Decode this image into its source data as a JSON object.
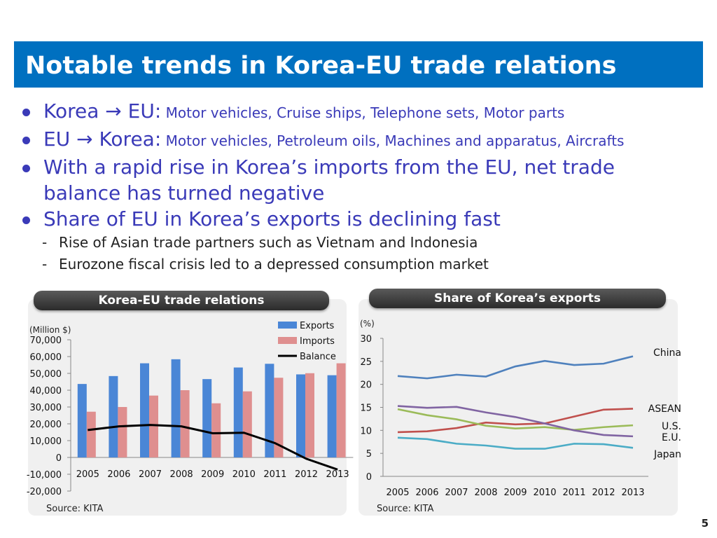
{
  "slide": {
    "title": "Notable trends in Korea-EU trade relations",
    "page_number": "5",
    "colors": {
      "title_bg": "#0070c0",
      "bullet_text": "#3a3ab8"
    }
  },
  "bullets": [
    {
      "main": "Korea → EU:",
      "detail": " Motor vehicles, Cruise ships, Telephone sets, Motor parts"
    },
    {
      "main": "EU → Korea:",
      "detail": " Motor vehicles, Petroleum oils, Machines and apparatus, Aircrafts"
    },
    {
      "line1": "With a rapid rise in Korea’s imports from the EU, net trade",
      "line2": "balance has turned negative"
    },
    {
      "main": "Share of EU in Korea’s exports is declining fast",
      "subs": [
        "Rise of Asian trade partners such as Vietnam and Indonesia",
        "Eurozone fiscal crisis led to a depressed consumption market"
      ]
    }
  ],
  "chart_data": [
    {
      "type": "bar",
      "title": "Korea-EU trade relations",
      "ylabel": "(Million $)",
      "source": "Source: KITA",
      "categories": [
        "2005",
        "2006",
        "2007",
        "2008",
        "2009",
        "2010",
        "2011",
        "2012",
        "2013"
      ],
      "ylim": [
        -20000,
        70000
      ],
      "yticks": [
        70000,
        60000,
        50000,
        40000,
        30000,
        20000,
        10000,
        0,
        -10000,
        -20000
      ],
      "ytick_labels": [
        "70,000",
        "60,000",
        "50,000",
        "40,000",
        "30,000",
        "20,000",
        "10,000",
        "0",
        "-10,000",
        "-20,000"
      ],
      "legend_position": "top-right",
      "series": [
        {
          "name": "Exports",
          "kind": "bar",
          "color": "#4a86d6",
          "values": [
            43700,
            48400,
            56000,
            58400,
            46600,
            53500,
            55700,
            49400,
            48900
          ]
        },
        {
          "name": "Imports",
          "kind": "bar",
          "color": "#df8f8f",
          "values": [
            27200,
            30000,
            36800,
            40000,
            32200,
            39300,
            47400,
            50100,
            56000
          ]
        },
        {
          "name": "Balance",
          "kind": "line",
          "color": "#000000",
          "values": [
            16300,
            18500,
            19300,
            18500,
            14400,
            14700,
            8500,
            -800,
            -7200
          ]
        }
      ]
    },
    {
      "type": "line",
      "title": "Share of Korea’s exports",
      "ylabel": "(%)",
      "source": "Source: KITA",
      "x": [
        "2005",
        "2006",
        "2007",
        "2008",
        "2009",
        "2010",
        "2011",
        "2012",
        "2013"
      ],
      "ylim": [
        0,
        30
      ],
      "yticks": [
        30,
        25,
        20,
        15,
        10,
        5,
        0
      ],
      "series": [
        {
          "name": "China",
          "color": "#4f81bd",
          "values": [
            21.8,
            21.3,
            22.1,
            21.7,
            23.9,
            25.1,
            24.2,
            24.5,
            26.1
          ]
        },
        {
          "name": "ASEAN",
          "color": "#c0504d",
          "values": [
            9.6,
            9.8,
            10.5,
            11.7,
            11.3,
            11.5,
            13.0,
            14.5,
            14.7
          ]
        },
        {
          "name": "U.S.",
          "color": "#9bbb59",
          "values": [
            14.6,
            13.3,
            12.4,
            11.0,
            10.4,
            10.7,
            10.1,
            10.7,
            11.1
          ]
        },
        {
          "name": "E.U.",
          "color": "#8064a2",
          "values": [
            15.3,
            14.9,
            15.1,
            13.9,
            12.9,
            11.5,
            10.0,
            9.0,
            8.7
          ]
        },
        {
          "name": "Japan",
          "color": "#4bacc6",
          "values": [
            8.4,
            8.1,
            7.1,
            6.7,
            6.0,
            6.0,
            7.1,
            7.0,
            6.2
          ]
        }
      ]
    }
  ]
}
